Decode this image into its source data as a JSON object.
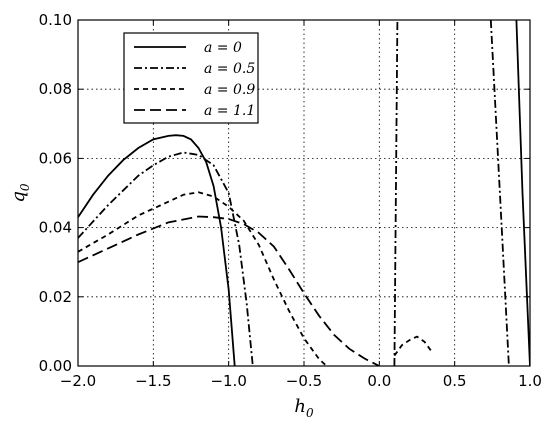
{
  "chart_data": {
    "type": "line",
    "xlabel": "h_0",
    "ylabel": "q_0",
    "xlim": [
      -2.0,
      1.0
    ],
    "ylim": [
      0.0,
      0.1
    ],
    "grid": true,
    "legend_position": "top-left",
    "x_ticks": [
      "−2.0",
      "−1.5",
      "−1.0",
      "−0.5",
      "0.0",
      "0.5",
      "1.0"
    ],
    "x_tick_values": [
      -2.0,
      -1.5,
      -1.0,
      -0.5,
      0.0,
      0.5,
      1.0
    ],
    "y_ticks": [
      "0.00",
      "0.02",
      "0.04",
      "0.06",
      "0.08",
      "0.10"
    ],
    "y_tick_values": [
      0.0,
      0.02,
      0.04,
      0.06,
      0.08,
      0.1
    ],
    "series": [
      {
        "name": "a = 0",
        "style": "solid",
        "segments": [
          [
            [
              -2.0,
              0.043
            ],
            [
              -1.9,
              0.0495
            ],
            [
              -1.8,
              0.055
            ],
            [
              -1.7,
              0.0595
            ],
            [
              -1.6,
              0.063
            ],
            [
              -1.5,
              0.0655
            ],
            [
              -1.4,
              0.0665
            ],
            [
              -1.35,
              0.0667
            ],
            [
              -1.3,
              0.0665
            ],
            [
              -1.25,
              0.0655
            ],
            [
              -1.2,
              0.063
            ],
            [
              -1.15,
              0.059
            ],
            [
              -1.1,
              0.052
            ],
            [
              -1.05,
              0.04
            ],
            [
              -1.0,
              0.022
            ],
            [
              -0.96,
              0.0
            ]
          ],
          [
            [
              0.91,
              0.1
            ],
            [
              0.95,
              0.05
            ],
            [
              0.98,
              0.02
            ],
            [
              1.0,
              0.0
            ]
          ]
        ]
      },
      {
        "name": "a = 0.5",
        "style": "dashdot",
        "segments": [
          [
            [
              -2.0,
              0.037
            ],
            [
              -1.8,
              0.0465
            ],
            [
              -1.6,
              0.055
            ],
            [
              -1.5,
              0.058
            ],
            [
              -1.4,
              0.0605
            ],
            [
              -1.3,
              0.0617
            ],
            [
              -1.2,
              0.061
            ],
            [
              -1.1,
              0.058
            ],
            [
              -1.0,
              0.05
            ],
            [
              -0.93,
              0.035
            ],
            [
              -0.88,
              0.018
            ],
            [
              -0.84,
              0.0
            ]
          ],
          [
            [
              0.1,
              0.0
            ],
            [
              0.11,
              0.05
            ],
            [
              0.12,
              0.1
            ]
          ],
          [
            [
              0.74,
              0.1
            ],
            [
              0.8,
              0.05
            ],
            [
              0.86,
              0.0
            ]
          ]
        ]
      },
      {
        "name": "a = 0.9",
        "style": "dashed-short",
        "segments": [
          [
            [
              -2.0,
              0.033
            ],
            [
              -1.8,
              0.038
            ],
            [
              -1.6,
              0.0435
            ],
            [
              -1.4,
              0.0475
            ],
            [
              -1.3,
              0.0495
            ],
            [
              -1.2,
              0.0502
            ],
            [
              -1.1,
              0.049
            ],
            [
              -1.0,
              0.046
            ],
            [
              -0.9,
              0.042
            ],
            [
              -0.8,
              0.035
            ],
            [
              -0.7,
              0.025
            ],
            [
              -0.6,
              0.016
            ],
            [
              -0.5,
              0.008
            ],
            [
              -0.4,
              0.002
            ],
            [
              -0.35,
              0.0
            ]
          ],
          [
            [
              0.1,
              0.003
            ],
            [
              0.15,
              0.006
            ],
            [
              0.2,
              0.0075
            ],
            [
              0.25,
              0.0085
            ],
            [
              0.3,
              0.007
            ],
            [
              0.35,
              0.004
            ]
          ]
        ]
      },
      {
        "name": "a = 1.1",
        "style": "dashed-long",
        "segments": [
          [
            [
              -2.0,
              0.03
            ],
            [
              -1.8,
              0.034
            ],
            [
              -1.6,
              0.038
            ],
            [
              -1.4,
              0.0415
            ],
            [
              -1.2,
              0.0432
            ],
            [
              -1.1,
              0.043
            ],
            [
              -1.0,
              0.0425
            ],
            [
              -0.9,
              0.041
            ],
            [
              -0.8,
              0.0385
            ],
            [
              -0.7,
              0.0345
            ],
            [
              -0.6,
              0.028
            ],
            [
              -0.5,
              0.021
            ],
            [
              -0.4,
              0.0145
            ],
            [
              -0.3,
              0.009
            ],
            [
              -0.2,
              0.005
            ],
            [
              -0.1,
              0.0022
            ],
            [
              0.0,
              0.0
            ]
          ]
        ]
      }
    ],
    "legend": [
      {
        "label": "a = 0",
        "style": "solid"
      },
      {
        "label": "a = 0.5",
        "style": "dashdot"
      },
      {
        "label": "a = 0.9",
        "style": "dashed-short"
      },
      {
        "label": "a = 1.1",
        "style": "dashed-long"
      }
    ]
  }
}
